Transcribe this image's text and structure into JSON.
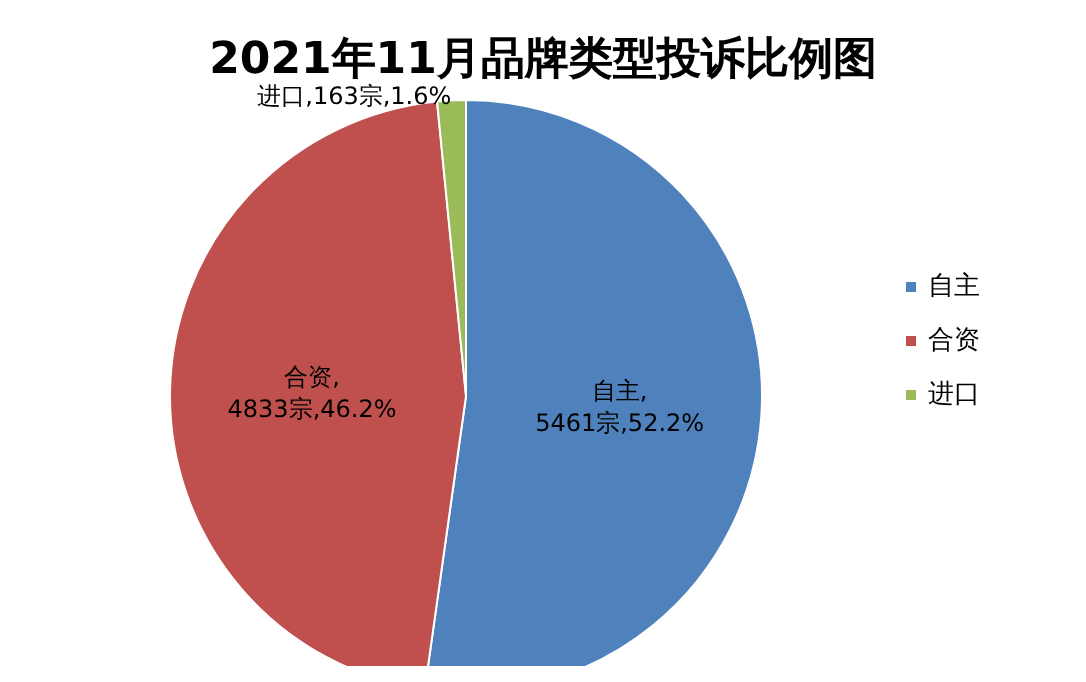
{
  "chart_data": {
    "type": "pie",
    "title": "2021年11月品牌类型投诉比例图",
    "categories": [
      "自主",
      "合资",
      "进口"
    ],
    "values": [
      5461,
      4833,
      163
    ],
    "colors": [
      "#4f81bd",
      "#c0504d",
      "#9bbb59"
    ],
    "value_labels": [
      "自主,\n5461宗,52.2%",
      "合资,\n4833宗,46.2%",
      "进口,163宗,1.6%"
    ],
    "legend": "right"
  }
}
